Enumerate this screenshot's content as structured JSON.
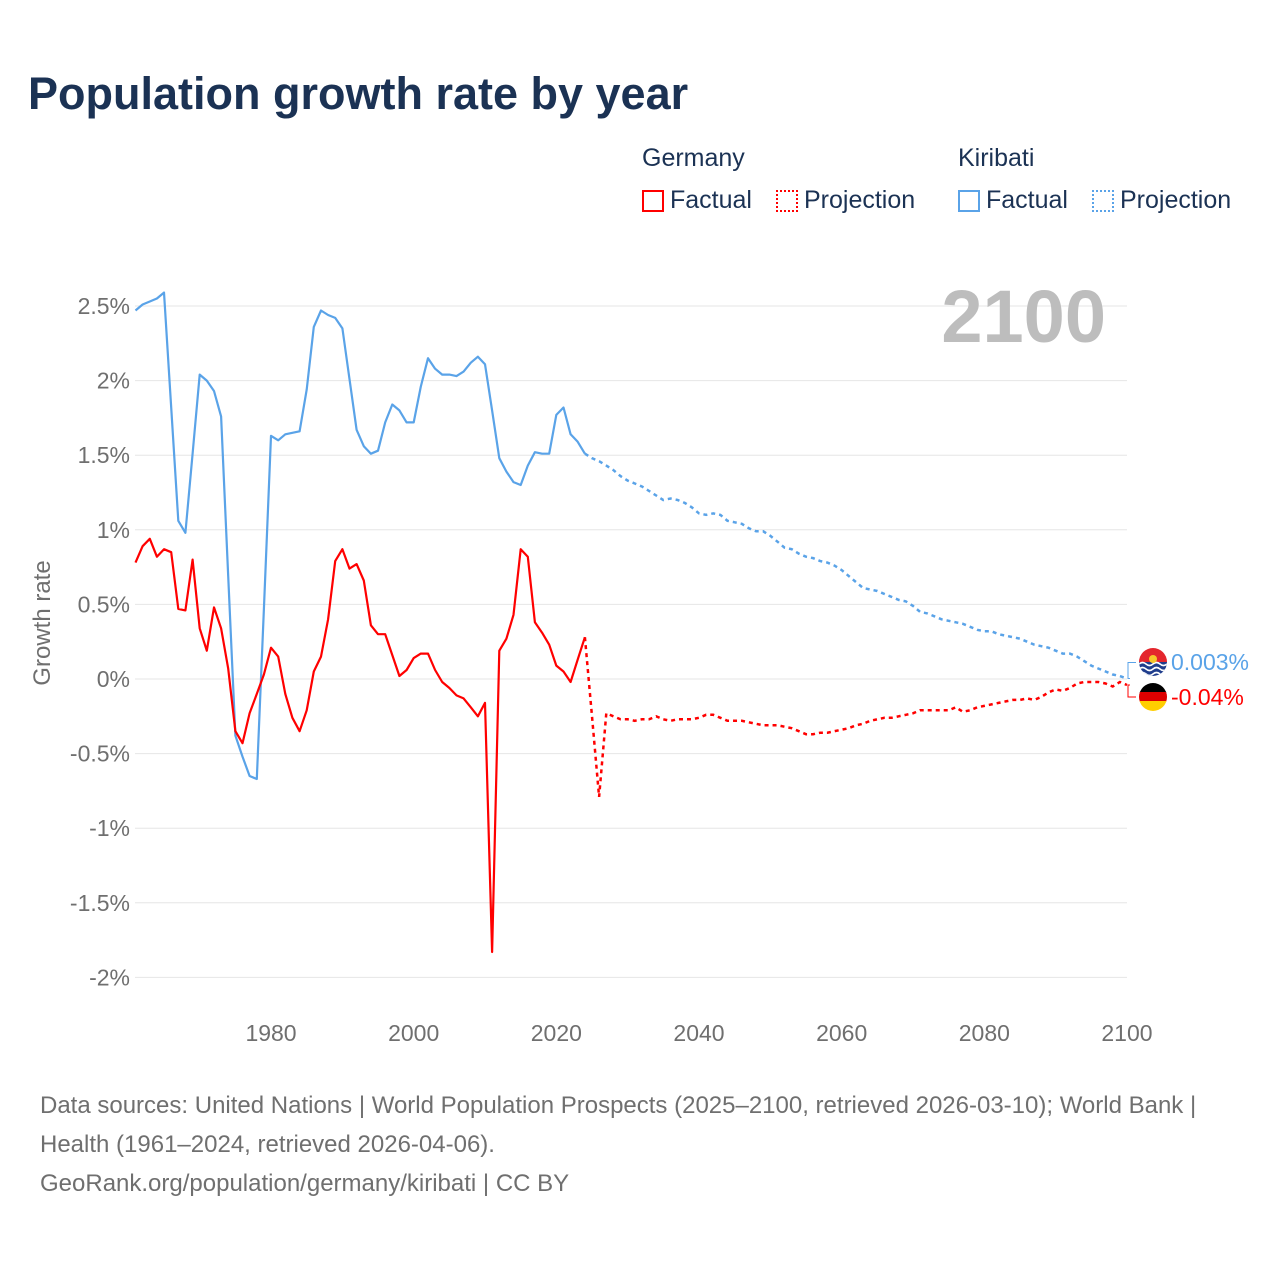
{
  "title": "Population growth rate by year",
  "legend": {
    "groups": [
      {
        "name": "Germany",
        "factual": "Factual",
        "projection": "Projection",
        "color": "#ff0000"
      },
      {
        "name": "Kiribati",
        "factual": "Factual",
        "projection": "Projection",
        "color": "#5aa3e8"
      }
    ]
  },
  "footer": {
    "sources": "Data sources: United Nations | World Population Prospects (2025–2100, retrieved 2026-03-10); World Bank | Health (1961–2024, retrieved 2026-04-06).",
    "credit": "GeoRank.org/population/germany/kiribati | CC BY"
  },
  "chart_data": {
    "type": "line",
    "title": "Population growth rate by year",
    "ylabel": "Growth rate",
    "xlabel": "",
    "year_watermark": "2100",
    "xlim": [
      1961,
      2100
    ],
    "ylim": [
      -2.2,
      2.7
    ],
    "x_ticks": [
      1980,
      2000,
      2020,
      2040,
      2060,
      2080,
      2100
    ],
    "x_tick_labels": [
      "1980",
      "2000",
      "2020",
      "2040",
      "2060",
      "2080",
      "2100"
    ],
    "y_ticks": [
      2.5,
      2,
      1.5,
      1,
      0.5,
      0,
      -0.5,
      -1,
      -1.5,
      -2
    ],
    "y_tick_labels": [
      "2.5%",
      "2%",
      "1.5%",
      "1%",
      "0.5%",
      "0%",
      "-0.5%",
      "-1%",
      "-1.5%",
      "-2%"
    ],
    "grid": true,
    "legend_placement": "top-right",
    "series": [
      {
        "name": "Kiribati",
        "color": "#5aa3e8",
        "end_label": "0.003%",
        "factual_start": 1961,
        "factual": [
          2.47,
          2.51,
          2.53,
          2.55,
          2.59,
          1.82,
          1.06,
          0.98,
          1.51,
          2.04,
          2.0,
          1.93,
          1.76,
          0.69,
          -0.38,
          -0.52,
          -0.65,
          -0.67,
          0.47,
          1.63,
          1.6,
          1.64,
          1.65,
          1.66,
          1.94,
          2.36,
          2.47,
          2.44,
          2.42,
          2.35,
          2.01,
          1.67,
          1.56,
          1.51,
          1.53,
          1.72,
          1.84,
          1.8,
          1.72,
          1.72,
          1.96,
          2.15,
          2.08,
          2.04,
          2.04,
          2.03,
          2.06,
          2.12,
          2.16,
          2.11,
          1.8,
          1.48,
          1.39,
          1.32,
          1.3,
          1.43,
          1.52,
          1.51,
          1.51,
          1.77,
          1.82,
          1.64,
          1.59,
          1.51
        ],
        "projection_start": 2025,
        "projection": [
          1.48,
          1.46,
          1.43,
          1.4,
          1.36,
          1.33,
          1.31,
          1.29,
          1.26,
          1.23,
          1.2,
          1.21,
          1.2,
          1.18,
          1.15,
          1.11,
          1.1,
          1.11,
          1.1,
          1.06,
          1.05,
          1.04,
          1.01,
          0.99,
          0.99,
          0.96,
          0.92,
          0.88,
          0.87,
          0.84,
          0.82,
          0.81,
          0.79,
          0.78,
          0.76,
          0.73,
          0.69,
          0.65,
          0.61,
          0.6,
          0.59,
          0.57,
          0.55,
          0.53,
          0.52,
          0.49,
          0.45,
          0.44,
          0.42,
          0.4,
          0.39,
          0.38,
          0.37,
          0.35,
          0.33,
          0.32,
          0.32,
          0.3,
          0.29,
          0.28,
          0.27,
          0.25,
          0.23,
          0.22,
          0.21,
          0.19,
          0.17,
          0.17,
          0.15,
          0.12,
          0.09,
          0.07,
          0.05,
          0.03,
          0.02,
          0.003
        ]
      },
      {
        "name": "Germany",
        "color": "#ff0000",
        "end_label": "-0.04%",
        "factual_start": 1961,
        "factual": [
          0.78,
          0.89,
          0.94,
          0.82,
          0.87,
          0.85,
          0.47,
          0.46,
          0.8,
          0.34,
          0.19,
          0.48,
          0.34,
          0.07,
          -0.35,
          -0.43,
          -0.23,
          -0.1,
          0.03,
          0.21,
          0.15,
          -0.1,
          -0.26,
          -0.35,
          -0.21,
          0.05,
          0.15,
          0.4,
          0.79,
          0.87,
          0.74,
          0.77,
          0.66,
          0.36,
          0.3,
          0.3,
          0.16,
          0.02,
          0.06,
          0.14,
          0.17,
          0.17,
          0.06,
          -0.02,
          -0.06,
          -0.11,
          -0.13,
          -0.19,
          -0.25,
          -0.16,
          -1.83,
          0.19,
          0.27,
          0.43,
          0.87,
          0.82,
          0.38,
          0.31,
          0.23,
          0.09,
          0.05,
          -0.02,
          0.13,
          0.28
        ],
        "projection_start": 2025,
        "projection": [
          -0.25,
          -0.79,
          -0.23,
          -0.25,
          -0.27,
          -0.27,
          -0.28,
          -0.27,
          -0.27,
          -0.25,
          -0.27,
          -0.28,
          -0.27,
          -0.27,
          -0.27,
          -0.26,
          -0.24,
          -0.24,
          -0.26,
          -0.28,
          -0.28,
          -0.28,
          -0.29,
          -0.3,
          -0.31,
          -0.31,
          -0.31,
          -0.32,
          -0.33,
          -0.35,
          -0.37,
          -0.37,
          -0.36,
          -0.36,
          -0.35,
          -0.34,
          -0.33,
          -0.31,
          -0.3,
          -0.28,
          -0.27,
          -0.26,
          -0.26,
          -0.25,
          -0.24,
          -0.23,
          -0.21,
          -0.21,
          -0.21,
          -0.21,
          -0.21,
          -0.19,
          -0.22,
          -0.21,
          -0.19,
          -0.18,
          -0.17,
          -0.16,
          -0.15,
          -0.14,
          -0.14,
          -0.13,
          -0.14,
          -0.12,
          -0.09,
          -0.07,
          -0.08,
          -0.06,
          -0.03,
          -0.02,
          -0.02,
          -0.02,
          -0.03,
          -0.05,
          -0.02,
          -0.04
        ]
      }
    ]
  }
}
